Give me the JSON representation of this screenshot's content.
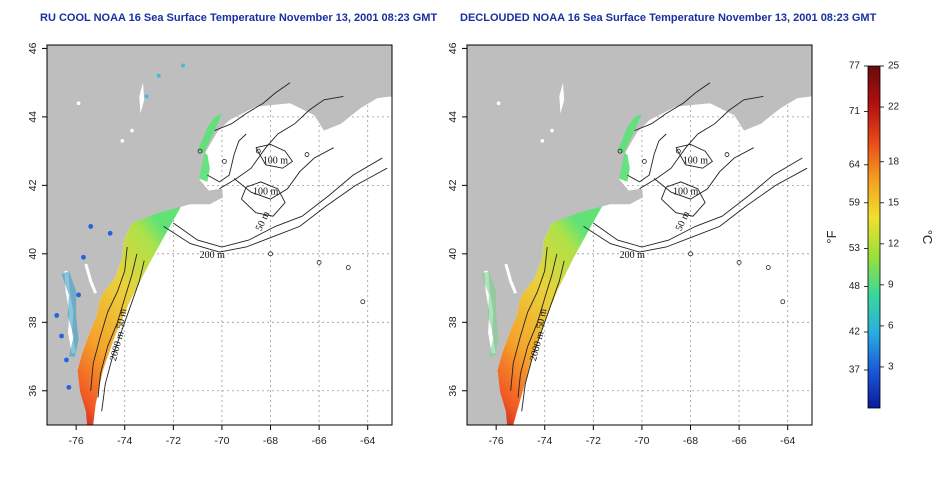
{
  "panels": [
    {
      "title": "RU COOL NOAA 16 Sea Surface Temperature November 13, 2001 08:23 GMT",
      "mode": "cloudy",
      "contour_labels": [
        "100 m",
        "100 m",
        "50 m",
        "200 m",
        "50 m",
        "2000 m"
      ]
    },
    {
      "title": "DECLOUDED NOAA 16 Sea Surface Temperature November 13, 2001 08:23 GMT",
      "mode": "declouded",
      "contour_labels": [
        "100 m",
        "100 m",
        "50 m",
        "200 m",
        "50 m",
        "2000 m"
      ]
    }
  ],
  "axes": {
    "lon_ticks": [
      "-76",
      "-74",
      "-72",
      "-70",
      "-68",
      "-66",
      "-64"
    ],
    "lat_ticks": [
      "36",
      "38",
      "40",
      "42",
      "44",
      "46"
    ]
  },
  "colorbar": {
    "fahrenheit_ticks": [
      "77",
      "71",
      "64",
      "59",
      "53",
      "48",
      "42",
      "37"
    ],
    "celsius_ticks": [
      "25",
      "22",
      "18",
      "15",
      "12",
      "9",
      "6",
      "3"
    ],
    "unit_f": "°F",
    "unit_c": "°C",
    "colors": [
      "#0a1a9e",
      "#1a5ad8",
      "#2aaee0",
      "#3ad89a",
      "#9ae03a",
      "#f0e030",
      "#f4a020",
      "#e84a18",
      "#b01010",
      "#6a0a0a"
    ]
  },
  "colors": {
    "land": "#bebebe",
    "ocean": "#ffffff",
    "title": "#1a2fa0",
    "grid": "#9a9a9a"
  }
}
